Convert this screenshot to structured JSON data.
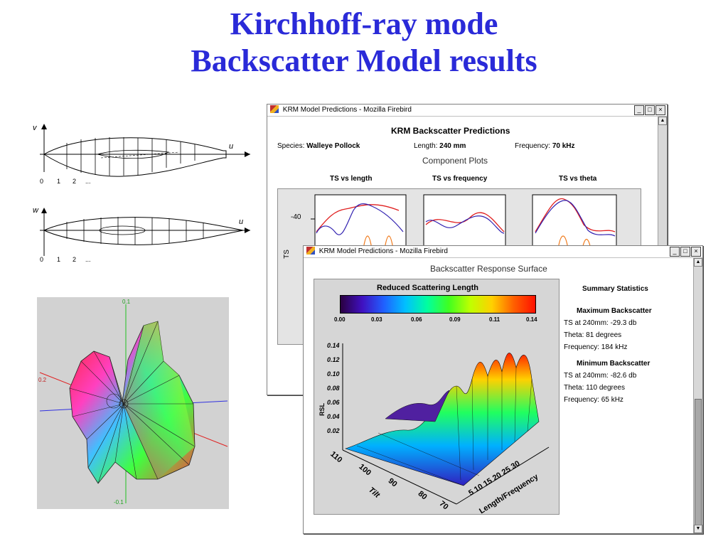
{
  "slide": {
    "title_line1": "Kirchhoff-ray mode",
    "title_line2": "Backscatter Model results"
  },
  "fish_diagram": {
    "top": {
      "axis_v": "v",
      "axis_u": "u",
      "ticks": [
        "0",
        "1",
        "2",
        "..."
      ]
    },
    "bottom": {
      "axis_w": "w",
      "axis_u": "u",
      "ticks": [
        "0",
        "1",
        "2",
        "..."
      ]
    }
  },
  "polar_plot": {
    "tick_top": "0.1",
    "tick_left": "0.2",
    "tick_bottom": "-0.1"
  },
  "window1": {
    "title": "KRM Model Predictions - Mozilla Firebird",
    "heading": "KRM Backscatter Predictions",
    "species_label": "Species:",
    "species_value": "Walleye Pollock",
    "length_label": "Length:",
    "length_value": "240 mm",
    "frequency_label": "Frequency:",
    "frequency_value": "70 kHz",
    "component_title": "Component Plots",
    "plot_titles": [
      "TS vs length",
      "TS vs frequency",
      "TS vs theta"
    ],
    "y_tick": "-40",
    "y_label": "TS"
  },
  "window2": {
    "title": "KRM Model Predictions - Mozilla Firebird",
    "heading": "Backscatter Response Surface",
    "colorbar_title": "Reduced Scattering Length",
    "colorbar_ticks": [
      "0.00",
      "0.03",
      "0.06",
      "0.09",
      "0.11",
      "0.14"
    ],
    "z_ticks": [
      "0.14",
      "0.12",
      "0.10",
      "0.08",
      "0.06",
      "0.04",
      "0.02"
    ],
    "z_label": "RSL",
    "tilt_ticks": [
      "110",
      "100",
      "90",
      "80",
      "70"
    ],
    "tilt_label": "Tilt",
    "freq_ticks": "5 10 15 20 25 30",
    "freq_label": "Length/Frequency",
    "summary_title": "Summary Statistics",
    "max_title": "Maximum Backscatter",
    "max_ts": "TS at 240mm: -29.3 db",
    "max_theta": "Theta: 81 degrees",
    "max_freq": "Frequency: 184 kHz",
    "min_title": "Minimum Backscatter",
    "min_ts": "TS at 240mm: -82.6 db",
    "min_theta": "Theta: 110 degrees",
    "min_freq": "Frequency: 65 kHz"
  },
  "colors": {
    "title": "#2a2ad8",
    "curve_red": "#e02020",
    "curve_purple": "#3020b0",
    "curve_orange": "#f07818"
  }
}
